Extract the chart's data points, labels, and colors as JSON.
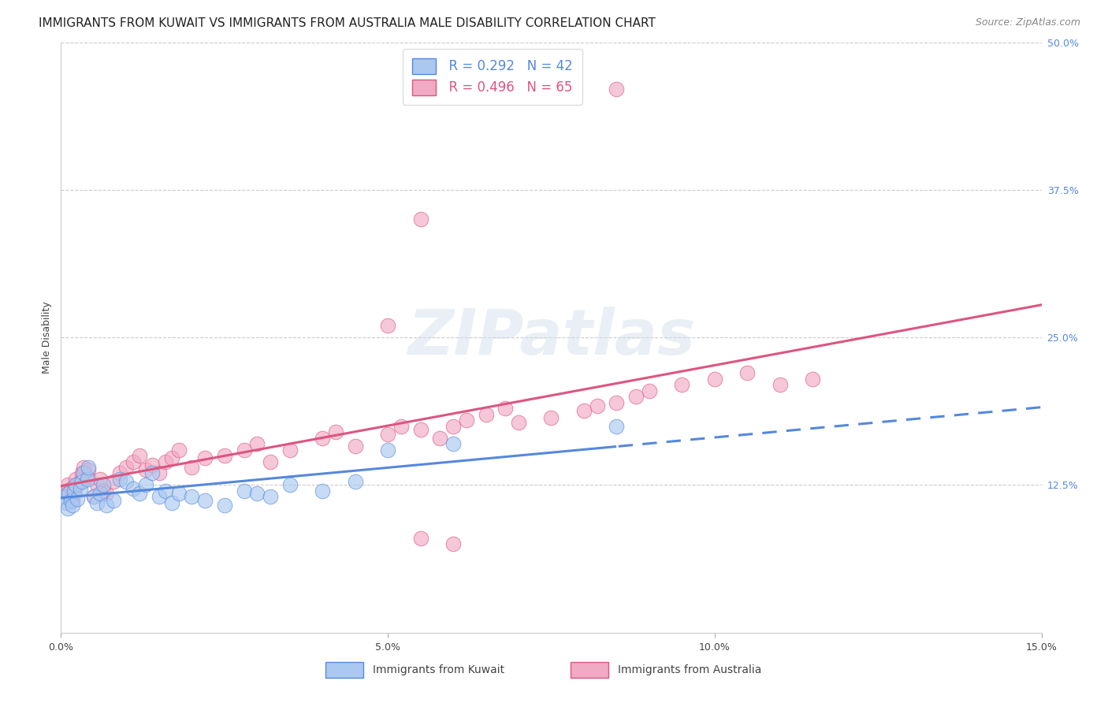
{
  "title": "IMMIGRANTS FROM KUWAIT VS IMMIGRANTS FROM AUSTRALIA MALE DISABILITY CORRELATION CHART",
  "source": "Source: ZipAtlas.com",
  "ylabel": "Male Disability",
  "xlim": [
    0.0,
    0.15
  ],
  "ylim": [
    0.0,
    0.5
  ],
  "xticks": [
    0.0,
    0.05,
    0.1,
    0.15
  ],
  "xtick_labels": [
    "0.0%",
    "5.0%",
    "10.0%",
    "15.0%"
  ],
  "yticks": [
    0.0,
    0.125,
    0.25,
    0.375,
    0.5
  ],
  "ytick_labels": [
    "",
    "12.5%",
    "25.0%",
    "37.5%",
    "50.0%"
  ],
  "kuwait_R": 0.292,
  "kuwait_N": 42,
  "australia_R": 0.496,
  "australia_N": 65,
  "kuwait_color": "#aac8f0",
  "australia_color": "#f0aac4",
  "kuwait_line_color": "#5588dd",
  "australia_line_color": "#dd5580",
  "background_color": "#ffffff",
  "grid_color": "#cccccc",
  "title_fontsize": 11,
  "axis_label_fontsize": 9,
  "tick_fontsize": 9,
  "legend_fontsize": 12,
  "watermark": "ZIPatlas",
  "kuwait_x": [
    0.0005,
    0.0008,
    0.001,
    0.0012,
    0.0015,
    0.0018,
    0.002,
    0.0022,
    0.0025,
    0.003,
    0.0032,
    0.0035,
    0.004,
    0.0042,
    0.005,
    0.0055,
    0.006,
    0.0065,
    0.007,
    0.008,
    0.009,
    0.01,
    0.011,
    0.012,
    0.013,
    0.014,
    0.015,
    0.016,
    0.017,
    0.018,
    0.02,
    0.022,
    0.025,
    0.028,
    0.03,
    0.032,
    0.035,
    0.04,
    0.045,
    0.05,
    0.06,
    0.085
  ],
  "kuwait_y": [
    0.115,
    0.11,
    0.105,
    0.118,
    0.112,
    0.108,
    0.12,
    0.125,
    0.113,
    0.122,
    0.128,
    0.135,
    0.13,
    0.14,
    0.115,
    0.11,
    0.118,
    0.125,
    0.108,
    0.112,
    0.13,
    0.128,
    0.122,
    0.118,
    0.125,
    0.135,
    0.115,
    0.12,
    0.11,
    0.118,
    0.115,
    0.112,
    0.108,
    0.12,
    0.118,
    0.115,
    0.125,
    0.12,
    0.128,
    0.155,
    0.16,
    0.175
  ],
  "australia_x": [
    0.0005,
    0.0008,
    0.001,
    0.0012,
    0.0015,
    0.0018,
    0.002,
    0.0022,
    0.0025,
    0.003,
    0.0032,
    0.0035,
    0.004,
    0.0042,
    0.005,
    0.0055,
    0.006,
    0.0065,
    0.007,
    0.008,
    0.009,
    0.01,
    0.011,
    0.012,
    0.013,
    0.014,
    0.015,
    0.016,
    0.017,
    0.018,
    0.02,
    0.022,
    0.025,
    0.028,
    0.03,
    0.032,
    0.035,
    0.04,
    0.042,
    0.045,
    0.05,
    0.052,
    0.055,
    0.058,
    0.06,
    0.062,
    0.065,
    0.068,
    0.07,
    0.075,
    0.08,
    0.082,
    0.085,
    0.088,
    0.09,
    0.095,
    0.1,
    0.105,
    0.11,
    0.115,
    0.05,
    0.055,
    0.085,
    0.055,
    0.06
  ],
  "australia_y": [
    0.12,
    0.118,
    0.125,
    0.115,
    0.122,
    0.112,
    0.118,
    0.13,
    0.125,
    0.128,
    0.135,
    0.14,
    0.132,
    0.138,
    0.115,
    0.125,
    0.13,
    0.12,
    0.118,
    0.128,
    0.135,
    0.14,
    0.145,
    0.15,
    0.138,
    0.142,
    0.135,
    0.145,
    0.148,
    0.155,
    0.14,
    0.148,
    0.15,
    0.155,
    0.16,
    0.145,
    0.155,
    0.165,
    0.17,
    0.158,
    0.168,
    0.175,
    0.172,
    0.165,
    0.175,
    0.18,
    0.185,
    0.19,
    0.178,
    0.182,
    0.188,
    0.192,
    0.195,
    0.2,
    0.205,
    0.21,
    0.215,
    0.22,
    0.21,
    0.215,
    0.26,
    0.35,
    0.46,
    0.08,
    0.075
  ]
}
